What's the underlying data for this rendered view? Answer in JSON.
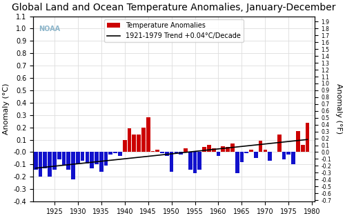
{
  "chart_data": {
    "type": "bar",
    "title": "Global Land and Ocean Temperature Anomalies, January-December",
    "y_label": "Anomaly (°C)",
    "y2_label": "Anomaly (°F)",
    "x": [
      1921,
      1922,
      1923,
      1924,
      1925,
      1926,
      1927,
      1928,
      1929,
      1930,
      1931,
      1932,
      1933,
      1934,
      1935,
      1936,
      1937,
      1938,
      1939,
      1940,
      1941,
      1942,
      1943,
      1944,
      1945,
      1946,
      1947,
      1948,
      1949,
      1950,
      1951,
      1952,
      1953,
      1954,
      1955,
      1956,
      1957,
      1958,
      1959,
      1960,
      1961,
      1962,
      1963,
      1964,
      1965,
      1966,
      1967,
      1968,
      1969,
      1970,
      1971,
      1972,
      1973,
      1974,
      1975,
      1976,
      1977,
      1978,
      1979
    ],
    "series": [
      {
        "name": "Temperature Anomalies",
        "type": "bar",
        "color": "#cc0000",
        "values": [
          -0.14,
          -0.2,
          -0.13,
          -0.2,
          -0.14,
          -0.06,
          -0.11,
          -0.14,
          -0.22,
          -0.09,
          -0.07,
          -0.09,
          -0.13,
          -0.1,
          -0.16,
          -0.11,
          -0.02,
          -0.01,
          -0.03,
          0.1,
          0.19,
          0.14,
          0.14,
          0.2,
          0.28,
          0.01,
          0.02,
          -0.01,
          -0.03,
          -0.16,
          -0.01,
          -0.02,
          0.03,
          -0.14,
          -0.17,
          -0.14,
          0.04,
          0.06,
          0.03,
          -0.03,
          0.05,
          0.04,
          0.07,
          -0.17,
          -0.08,
          -0.01,
          0.02,
          -0.05,
          0.09,
          0.02,
          -0.07,
          0.0,
          0.14,
          -0.06,
          -0.02,
          -0.1,
          0.17,
          0.06,
          0.24
        ],
        "colors": [
          "#1111cc",
          "#1111cc",
          "#1111cc",
          "#1111cc",
          "#1111cc",
          "#1111cc",
          "#1111cc",
          "#1111cc",
          "#1111cc",
          "#1111cc",
          "#1111cc",
          "#1111cc",
          "#1111cc",
          "#1111cc",
          "#1111cc",
          "#1111cc",
          "#1111cc",
          "#1111cc",
          "#1111cc",
          "#cc0000",
          "#cc0000",
          "#cc0000",
          "#cc0000",
          "#cc0000",
          "#cc0000",
          "#cc0000",
          "#cc0000",
          "#1111cc",
          "#1111cc",
          "#1111cc",
          "#1111cc",
          "#1111cc",
          "#cc0000",
          "#1111cc",
          "#1111cc",
          "#1111cc",
          "#cc0000",
          "#cc0000",
          "#cc0000",
          "#1111cc",
          "#cc0000",
          "#cc0000",
          "#cc0000",
          "#1111cc",
          "#1111cc",
          "#1111cc",
          "#cc0000",
          "#1111cc",
          "#cc0000",
          "#cc0000",
          "#1111cc",
          "#cc0000",
          "#cc0000",
          "#1111cc",
          "#1111cc",
          "#1111cc",
          "#cc0000",
          "#cc0000",
          "#cc0000"
        ]
      },
      {
        "name": "1921-1979 Trend +0.04°C/Decade",
        "type": "line",
        "color": "#000000",
        "x": [
          1921,
          1979
        ],
        "values": [
          -0.13,
          0.102
        ]
      }
    ],
    "annotations": [
      {
        "text": "NOAA"
      }
    ],
    "xlim": [
      1920.5,
      1980.5
    ],
    "xticks": [
      1925,
      1930,
      1935,
      1940,
      1945,
      1950,
      1955,
      1960,
      1965,
      1970,
      1975,
      1980
    ],
    "ylim": [
      -0.4,
      1.1
    ],
    "yticks": [
      -0.4,
      -0.3,
      -0.2,
      -0.1,
      {
        "value": 0.0,
        "label": "-0.0"
      },
      0.1,
      0.2,
      0.3,
      0.4,
      0.5,
      0.6,
      0.7,
      0.8,
      0.9,
      {
        "value": 1.0,
        "label": "1.0"
      },
      1.1
    ],
    "y2lim": [
      -0.72,
      1.98
    ],
    "y2ticks": [
      -0.7,
      -0.6,
      -0.5,
      -0.4,
      -0.3,
      -0.2,
      -0.1,
      {
        "value": 0.0,
        "label": "0.0"
      },
      0.1,
      0.2,
      0.3,
      0.4,
      0.5,
      0.6,
      0.7,
      0.8,
      0.9,
      {
        "value": 1.0,
        "label": "1.0"
      },
      1.1,
      1.2,
      1.3,
      1.4,
      1.5,
      1.6,
      1.7,
      1.8,
      1.9
    ],
    "grid": true,
    "legend": "upper center"
  }
}
